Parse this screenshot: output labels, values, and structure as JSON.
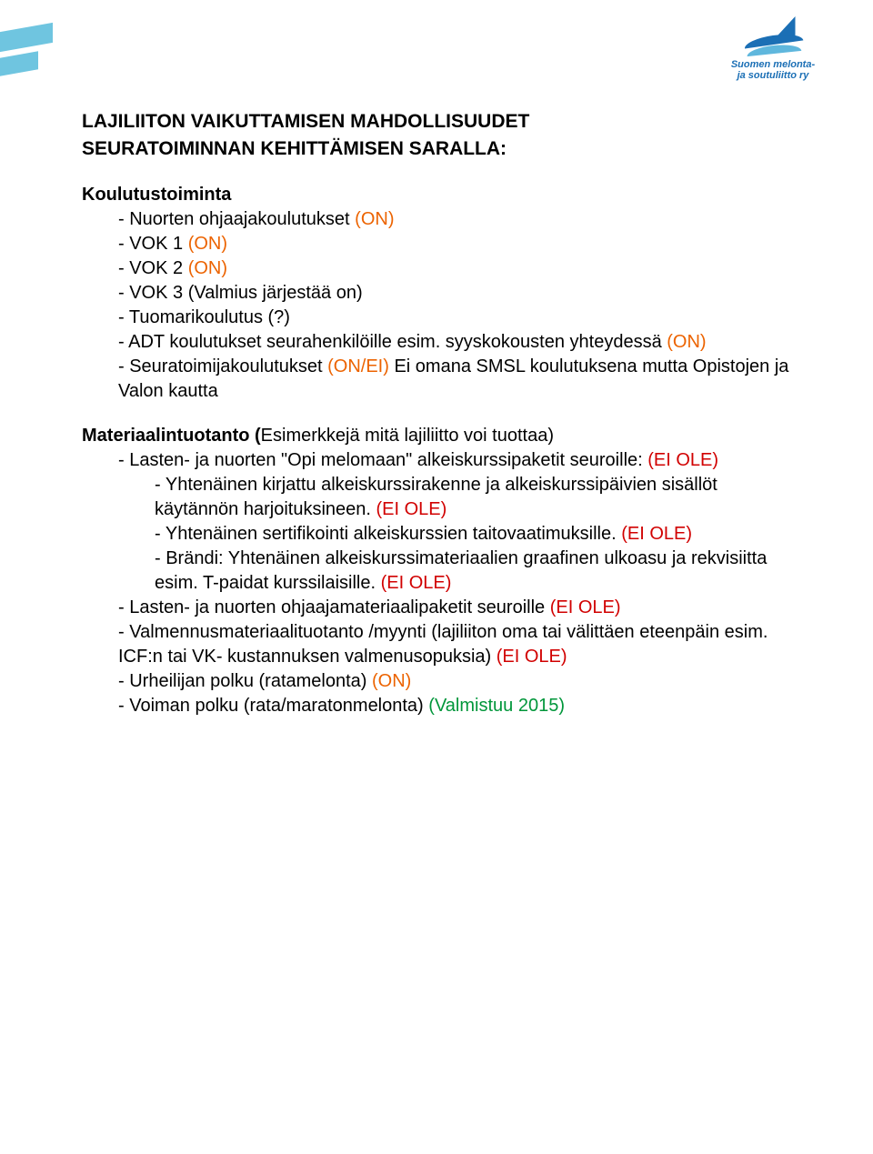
{
  "logo": {
    "line1": "Suomen melonta-",
    "line2": "ja soutuliitto ry"
  },
  "title": "LAJILIITON VAIKUTTAMISEN MAHDOLLISUUDET",
  "subtitle": "SEURATOIMINNAN KEHITTÄMISEN SARALLA:",
  "section1": {
    "head": "Koulutustoiminta",
    "items": [
      {
        "pre": "Nuorten ohjaajakoulutukset ",
        "tag": "(ON)",
        "cls": "on"
      },
      {
        "pre": "VOK 1 ",
        "tag": "(ON)",
        "cls": "on"
      },
      {
        "pre": "VOK 2 ",
        "tag": "(ON)",
        "cls": "on"
      },
      {
        "pre": "VOK 3 (Valmius järjestää on)",
        "tag": "",
        "cls": ""
      },
      {
        "pre": "Tuomarikoulutus (?)",
        "tag": "",
        "cls": ""
      },
      {
        "pre": "ADT koulutukset seurahenkilöille esim. syyskokousten yhteydessä ",
        "tag": "(ON)",
        "cls": "on"
      },
      {
        "pre": "Seuratoimijakoulutukset ",
        "tag": "(ON/EI)",
        "post": " Ei omana SMSL koulutuksena mutta Opistojen ja Valon kautta",
        "cls": "on"
      }
    ]
  },
  "section2": {
    "head_bold": "Materiaalintuotanto (",
    "head_rest": "Esimerkkejä mitä lajiliitto voi tuottaa)",
    "item1": {
      "pre": "Lasten- ja nuorten \"Opi melomaan\" alkeiskurssipaketit seuroille: ",
      "tag": "(EI OLE)"
    },
    "nested": [
      {
        "pre": "Yhtenäinen kirjattu alkeiskurssirakenne ja alkeiskurssipäivien sisällöt käytännön harjoituksineen. ",
        "tag": "(EI OLE)"
      },
      {
        "pre": "Yhtenäinen sertifikointi alkeiskurssien taitovaatimuksille. ",
        "tag": "(EI OLE)"
      },
      {
        "pre": "Brändi: Yhtenäinen alkeiskurssimateriaalien graafinen ulkoasu ja rekvisiitta esim. T-paidat kurssilaisille. ",
        "tag": "(EI OLE)"
      }
    ],
    "rest": [
      {
        "pre": "Lasten- ja nuorten ohjaajamateriaalipaketit seuroille ",
        "tag": "(EI OLE)",
        "cls": "ole"
      },
      {
        "pre": "Valmennusmateriaalituotanto /myynti (lajiliiton oma tai välittäen eteenpäin esim. ICF:n tai VK- kustannuksen valmenusopuksia) ",
        "tag": "(EI OLE)",
        "cls": "ole"
      },
      {
        "pre": "Urheilijan polku (ratamelonta) ",
        "tag": "(ON)",
        "cls": "on"
      },
      {
        "pre": "Voiman polku (rata/maratonmelonta) ",
        "tag": "(Valmistuu 2015)",
        "cls": "valm"
      }
    ]
  },
  "colors": {
    "orange": "#ec6300",
    "red": "#d10000",
    "green": "#00963a",
    "logo_blue": "#1b6fb5",
    "logo_light": "#5fb7dd"
  }
}
